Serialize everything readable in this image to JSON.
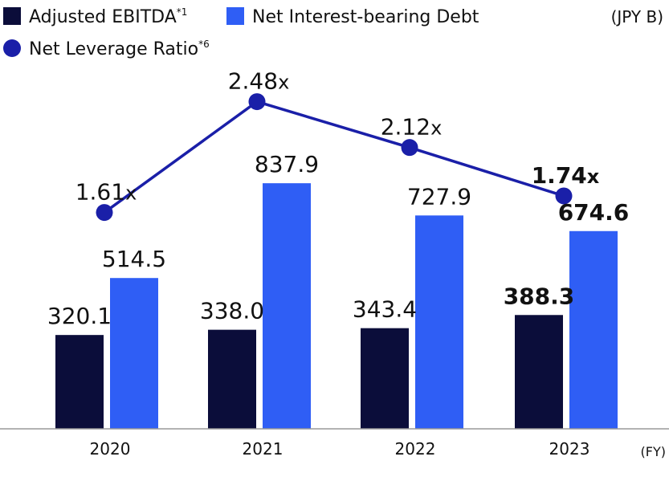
{
  "chart_data": {
    "type": "bar",
    "unit": "(JPY B)",
    "x_axis_suffix": "(FY)",
    "categories": [
      "2020",
      "2021",
      "2022",
      "2023"
    ],
    "series": [
      {
        "name": "Adjusted EBITDA",
        "superscript": "*1",
        "kind": "bar",
        "color": "#0b0d3a",
        "values": [
          320.1,
          338.0,
          343.4,
          388.3
        ],
        "labels": [
          "320.1",
          "338.0",
          "343.4",
          "388.3"
        ]
      },
      {
        "name": "Net Interest-bearing Debt",
        "superscript": "",
        "kind": "bar",
        "color": "#2f5ef5",
        "values": [
          514.5,
          837.9,
          727.9,
          674.6
        ],
        "labels": [
          "514.5",
          "837.9",
          "727.9",
          "674.6"
        ]
      },
      {
        "name": "Net Leverage Ratio",
        "superscript": "*6",
        "kind": "line",
        "color": "#1a1fa8",
        "values": [
          1.61,
          2.48,
          2.12,
          1.74
        ],
        "labels": [
          "1.61",
          "2.48",
          "2.12",
          "1.74"
        ],
        "label_suffix": "x"
      }
    ],
    "emphasized_category": "2023",
    "bar_ylim": [
      0,
      1100
    ],
    "line_ylim": [
      0,
      2.95
    ],
    "grid": false,
    "legend_position": "top-left"
  }
}
